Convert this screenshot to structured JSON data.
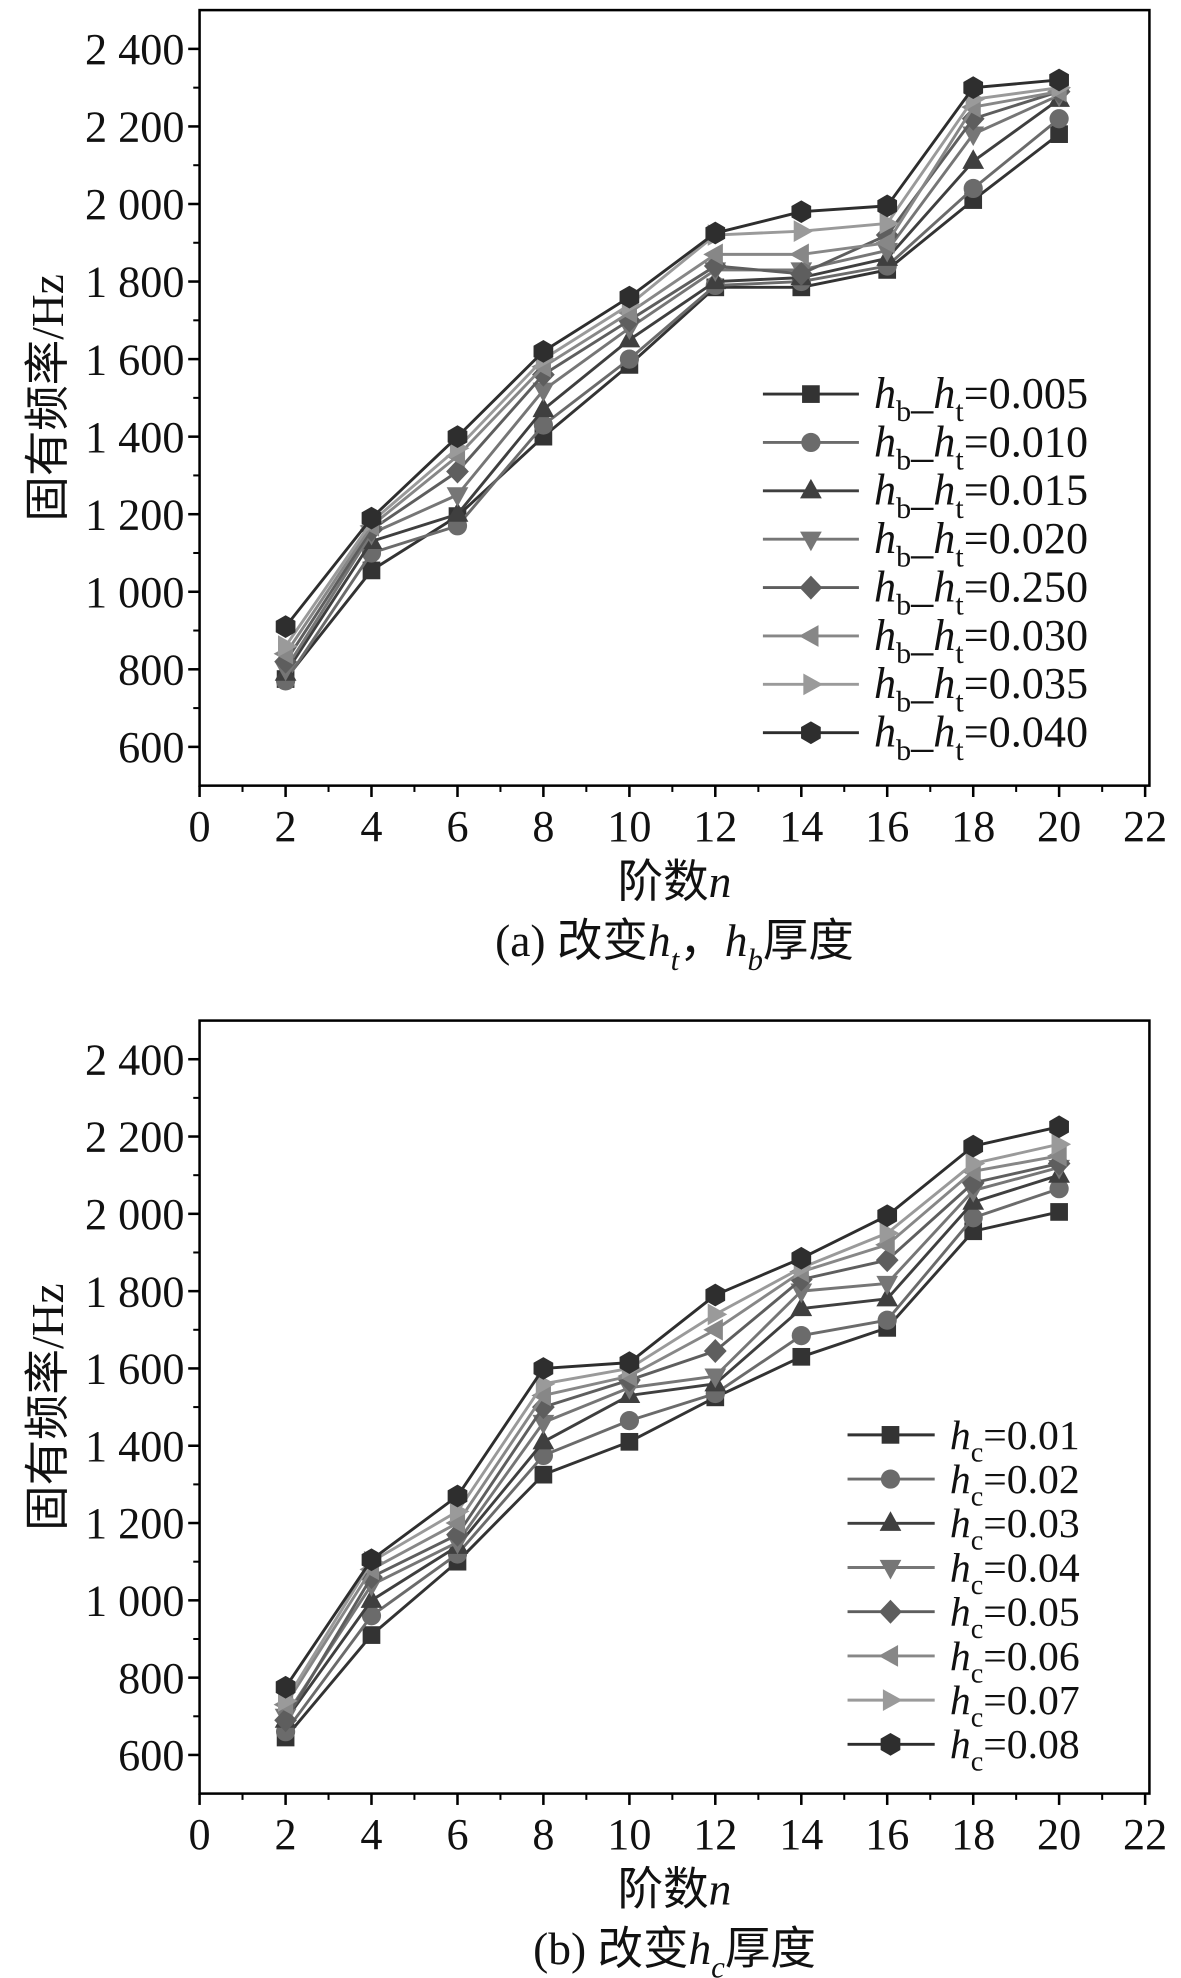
{
  "chart_data": [
    {
      "type": "line",
      "caption": [
        "(a) 改变",
        "h",
        "t",
        "，",
        "h",
        "b",
        "厚度"
      ],
      "xlabel": [
        "阶数",
        "n"
      ],
      "ylabel": "固有频率/Hz",
      "xlim": [
        0,
        22.1
      ],
      "ylim": [
        500,
        2500
      ],
      "xticks": [
        0,
        2,
        4,
        6,
        8,
        10,
        12,
        14,
        16,
        18,
        20,
        22
      ],
      "xtick_labels": [
        "0",
        "2",
        "4",
        "6",
        "8",
        "10",
        "12",
        "14",
        "16",
        "18",
        "20",
        "22"
      ],
      "yticks": [
        600,
        800,
        1000,
        1200,
        1400,
        1600,
        1800,
        2000,
        2200,
        2400
      ],
      "ytick_labels": [
        "600",
        "800",
        "1 000",
        "1 200",
        "1 400",
        "1 600",
        "1 800",
        "2 000",
        "2 200",
        "2 400"
      ],
      "grid": false,
      "legend_position": "center-right",
      "x": [
        2,
        4,
        6,
        8,
        10,
        12,
        14,
        16,
        18,
        20
      ],
      "series": [
        {
          "name": [
            "h",
            "b",
            "_",
            "h",
            "t",
            "=0.005"
          ],
          "marker": "square",
          "color": "#333333",
          "values": [
            775,
            1055,
            1195,
            1400,
            1585,
            1785,
            1785,
            1830,
            2010,
            2180
          ]
        },
        {
          "name": [
            "h",
            "b",
            "_",
            "h",
            "t",
            "=0.010"
          ],
          "marker": "circle",
          "color": "#6b6b6b",
          "values": [
            770,
            1100,
            1170,
            1430,
            1600,
            1790,
            1800,
            1840,
            2040,
            2220
          ]
        },
        {
          "name": [
            "h",
            "b",
            "_",
            "h",
            "t",
            "=0.015"
          ],
          "marker": "triangle-up",
          "color": "#3f3f3f",
          "values": [
            790,
            1130,
            1200,
            1470,
            1650,
            1800,
            1810,
            1860,
            2110,
            2270
          ]
        },
        {
          "name": [
            "h",
            "b",
            "_",
            "h",
            "t",
            "=0.020"
          ],
          "marker": "triangle-down",
          "color": "#767676",
          "values": [
            800,
            1150,
            1250,
            1520,
            1680,
            1830,
            1830,
            1880,
            2180,
            2280
          ]
        },
        {
          "name": [
            "h",
            "b",
            "_",
            "h",
            "t",
            "=0.250"
          ],
          "marker": "diamond",
          "color": "#5e5e5e",
          "values": [
            820,
            1160,
            1310,
            1560,
            1700,
            1840,
            1820,
            1920,
            2220,
            2290
          ]
        },
        {
          "name": [
            "h",
            "b",
            "_",
            "h",
            "t",
            "=0.030"
          ],
          "marker": "triangle-left",
          "color": "#878787",
          "values": [
            840,
            1170,
            1350,
            1580,
            1720,
            1870,
            1870,
            1900,
            2250,
            2290
          ]
        },
        {
          "name": [
            "h",
            "b",
            "_",
            "h",
            "t",
            "=0.035"
          ],
          "marker": "triangle-right",
          "color": "#9a9a9a",
          "values": [
            860,
            1180,
            1370,
            1600,
            1740,
            1920,
            1930,
            1950,
            2270,
            2300
          ]
        },
        {
          "name": [
            "h",
            "b",
            "_",
            "h",
            "t",
            "=0.040"
          ],
          "marker": "hexagon",
          "color": "#2e2e2e",
          "values": [
            910,
            1190,
            1400,
            1620,
            1760,
            1925,
            1980,
            1995,
            2300,
            2320
          ]
        }
      ]
    },
    {
      "type": "line",
      "caption": [
        "(b) 改变",
        "h",
        "c",
        "厚度"
      ],
      "xlabel": [
        "阶数",
        "n"
      ],
      "ylabel": "固有频率/Hz",
      "xlim": [
        0,
        22.1
      ],
      "ylim": [
        500,
        2500
      ],
      "xticks": [
        0,
        2,
        4,
        6,
        8,
        10,
        12,
        14,
        16,
        18,
        20,
        22
      ],
      "xtick_labels": [
        "0",
        "2",
        "4",
        "6",
        "8",
        "10",
        "12",
        "14",
        "16",
        "18",
        "20",
        "22"
      ],
      "yticks": [
        600,
        800,
        1000,
        1200,
        1400,
        1600,
        1800,
        2000,
        2200,
        2400
      ],
      "ytick_labels": [
        "600",
        "800",
        "1 000",
        "1 200",
        "1 400",
        "1 600",
        "1 800",
        "2 000",
        "2 200",
        "2 400"
      ],
      "grid": false,
      "legend_position": "bottom-right",
      "x": [
        2,
        4,
        6,
        8,
        10,
        12,
        14,
        16,
        18,
        20
      ],
      "series": [
        {
          "name": [
            "h",
            "c",
            "=0.01"
          ],
          "marker": "square",
          "color": "#333333",
          "values": [
            645,
            910,
            1100,
            1325,
            1410,
            1525,
            1630,
            1705,
            1955,
            2005
          ]
        },
        {
          "name": [
            "h",
            "c",
            "=0.02"
          ],
          "marker": "circle",
          "color": "#6b6b6b",
          "values": [
            660,
            960,
            1120,
            1375,
            1465,
            1535,
            1685,
            1725,
            1990,
            2065
          ]
        },
        {
          "name": [
            "h",
            "c",
            "=0.03"
          ],
          "marker": "triangle-up",
          "color": "#3f3f3f",
          "values": [
            690,
            1000,
            1140,
            1410,
            1530,
            1560,
            1755,
            1780,
            2030,
            2100
          ]
        },
        {
          "name": [
            "h",
            "c",
            "=0.04"
          ],
          "marker": "triangle-down",
          "color": "#767676",
          "values": [
            700,
            1040,
            1150,
            1460,
            1550,
            1580,
            1800,
            1820,
            2060,
            2120
          ]
        },
        {
          "name": [
            "h",
            "c",
            "=0.05"
          ],
          "marker": "diamond",
          "color": "#5e5e5e",
          "values": [
            690,
            1060,
            1170,
            1500,
            1570,
            1645,
            1830,
            1880,
            2080,
            2130
          ]
        },
        {
          "name": [
            "h",
            "c",
            "=0.06"
          ],
          "marker": "triangle-left",
          "color": "#878787",
          "values": [
            730,
            1080,
            1200,
            1530,
            1580,
            1700,
            1850,
            1920,
            2110,
            2150
          ]
        },
        {
          "name": [
            "h",
            "c",
            "=0.07"
          ],
          "marker": "triangle-right",
          "color": "#9a9a9a",
          "values": [
            740,
            1100,
            1230,
            1560,
            1600,
            1740,
            1860,
            1950,
            2130,
            2180
          ]
        },
        {
          "name": [
            "h",
            "c",
            "=0.08"
          ],
          "marker": "hexagon",
          "color": "#2e2e2e",
          "values": [
            775,
            1105,
            1270,
            1600,
            1615,
            1790,
            1885,
            1995,
            2175,
            2225
          ]
        }
      ]
    }
  ]
}
